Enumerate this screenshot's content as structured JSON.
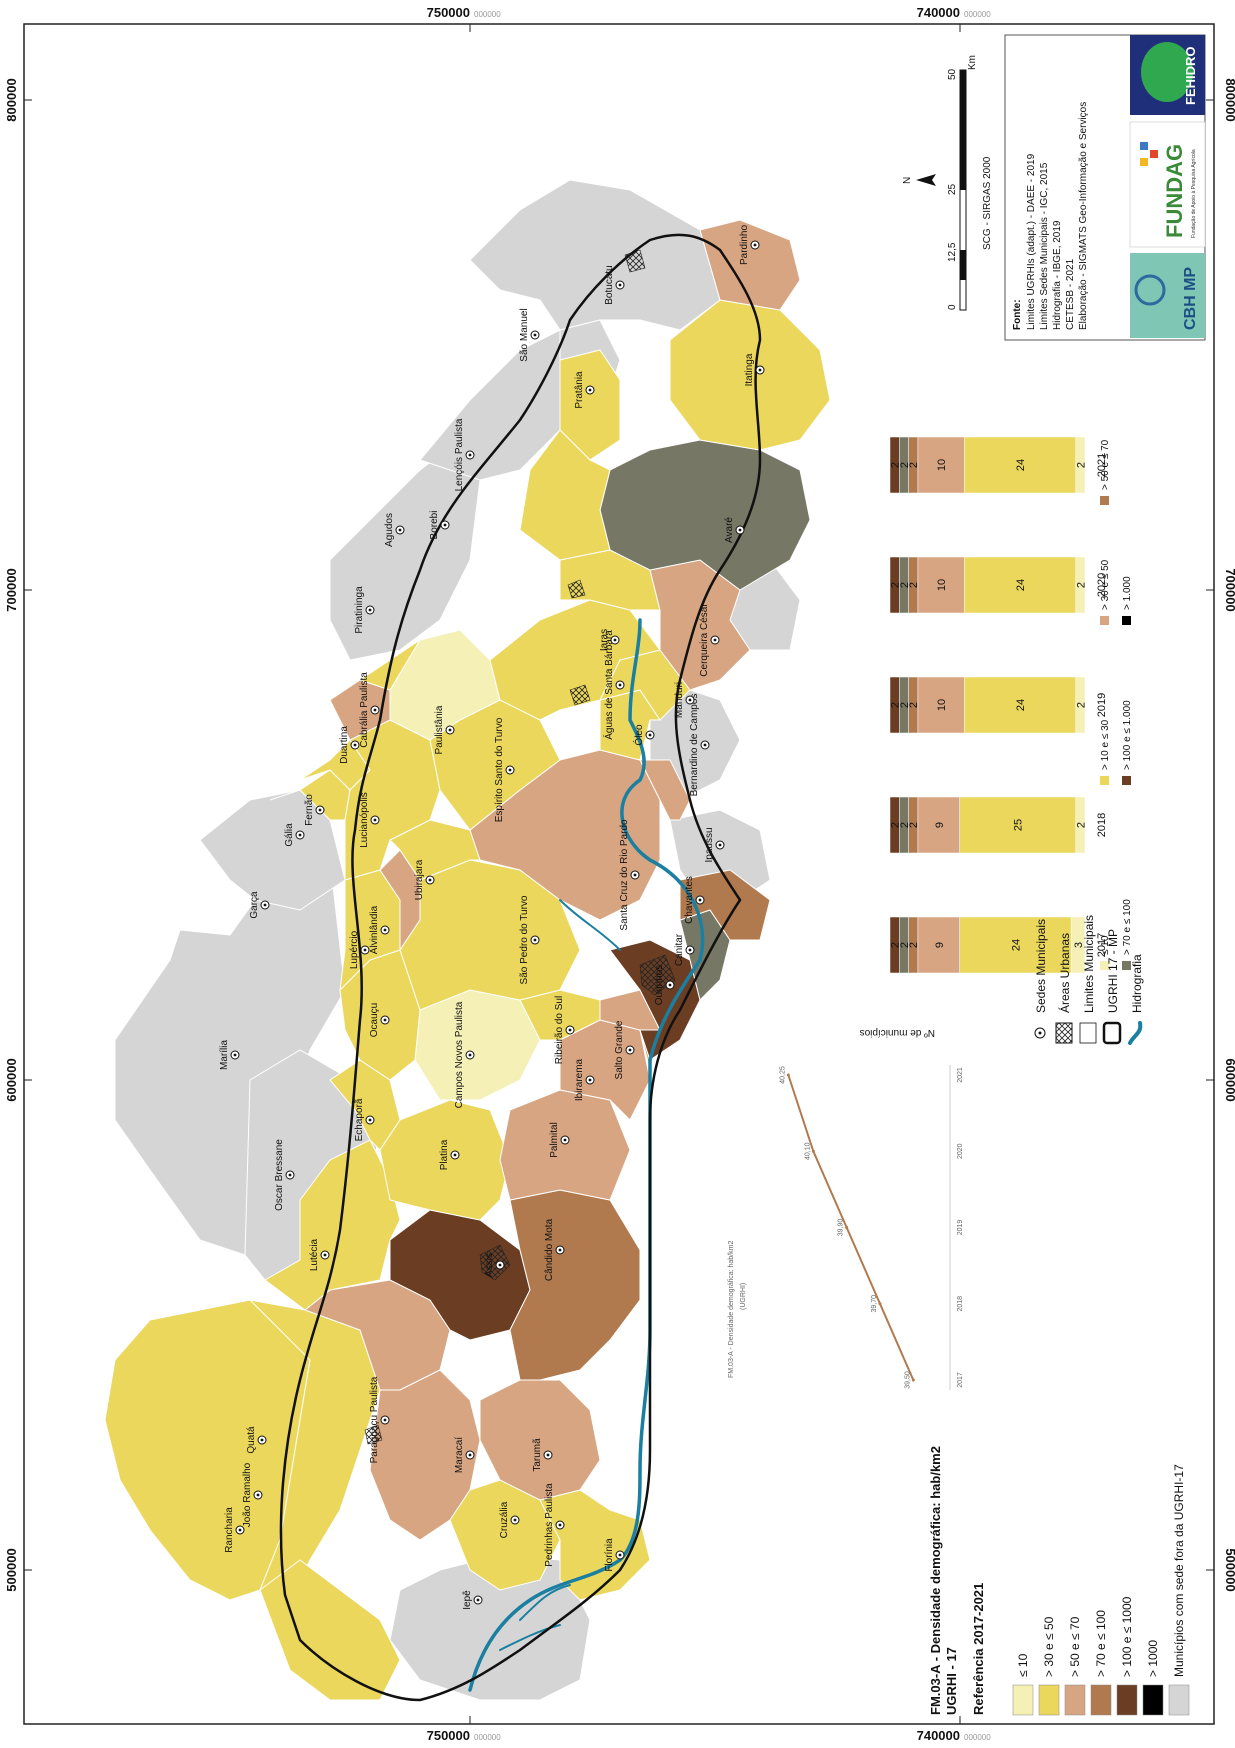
{
  "title": {
    "line1": "FM.03-A - Densidade demográfica: hab/km2",
    "line2": "UGRHI - 17",
    "line3": "Referência 2017-2021"
  },
  "coords": {
    "top": [
      "750000",
      "740000"
    ],
    "bottom": [
      "750000",
      "740000"
    ],
    "left": [
      "800000",
      "700000",
      "600000",
      "500000"
    ],
    "right": [
      "800000",
      "700000",
      "600000",
      "500000"
    ],
    "small_suffix": "000000"
  },
  "colors": {
    "le10": "#f4f0b6",
    "c30": "#ebd75c",
    "c50": "#d8a582",
    "c70": "#b07a4e",
    "c100": "#6b3e23",
    "c1000": "#777766",
    "gt1000": "#000000",
    "outside": "#d5d5d5",
    "water": "#1a7fa0"
  },
  "class_legend": [
    {
      "label": "≤ 10",
      "color": "#f4f0b6"
    },
    {
      "label": "> 30 e ≤ 50",
      "color": "#ebd75c"
    },
    {
      "label": "> 50 e ≤ 70",
      "color": "#d8a582"
    },
    {
      "label": "> 70 e ≤ 100",
      "color": "#b07a4e"
    },
    {
      "label": "> 100 e ≤ 1000",
      "color": "#6b3e23"
    },
    {
      "label": "> 1000",
      "color": "#000000"
    },
    {
      "label": "Municípios com sede fora da UGRHI-17",
      "color": "#d5d5d5"
    }
  ],
  "symbol_legend": [
    {
      "label": "Sedes Municipais",
      "icon": "dot-circle-icon"
    },
    {
      "label": "Áreas Urbanas",
      "icon": "crosshatch-icon"
    },
    {
      "label": "Limites Municipais",
      "icon": "outline-box-icon"
    },
    {
      "label": "UGRHI 17 - MP",
      "icon": "thick-outline-icon"
    },
    {
      "label": "Hidrografia",
      "icon": "river-icon"
    }
  ],
  "municipalities": [
    "Rancharia",
    "João Ramalho",
    "Quatá",
    "Iepê",
    "Paraguaçu Paulista",
    "Maracaí",
    "Cruzália",
    "Pedrinhas Paulista",
    "Florínia",
    "Tarumã",
    "Assis",
    "Cândido Mota",
    "Lutécia",
    "Oscar Bressane",
    "Echaporã",
    "Platina",
    "Palmital",
    "Ibirarema",
    "Campos Novos Paulista",
    "Salto Grande",
    "Ribeirão do Sul",
    "Marília",
    "Ocauçu",
    "Lupércio",
    "Alvinlândia",
    "São Pedro do Turvo",
    "Ourinhos",
    "Canitar",
    "Chavantes",
    "Garça",
    "Ubirajara",
    "Santa Cruz do Rio Pardo",
    "Ipaussu",
    "Gália",
    "Fernão",
    "Lucianópolis",
    "Duartina",
    "Espírito Santo do Turvo",
    "Bernardino de Campos",
    "Paulistânia",
    "Cabrália Paulista",
    "Óleo",
    "Manduri",
    "Águas de Santa Bárbara",
    "Piratininga",
    "Iaras",
    "Cerqueira César",
    "Agudos",
    "Borebi",
    "Avaré",
    "Lençóis Paulista",
    "Pratânia",
    "Itatinga",
    "São Manuel",
    "Botucatu",
    "Pardinho"
  ],
  "scale": {
    "ticks": [
      "0",
      "12,5",
      "25",
      "50"
    ],
    "unit": "Km",
    "projection": "SCG - SIRGAS 2000",
    "north": "N"
  },
  "sources": {
    "heading": "Fonte:",
    "lines": [
      "Limites UGRHIs (adapt.) - DAEE - 2019",
      "Limites Sedes Municipais - IGC, 2015",
      "Hidrografia - IBGE, 2019",
      "CETESB - 2021",
      "Elaboração - SIGMATS Geo-Informação e Serviços"
    ]
  },
  "logos": {
    "fehidro": "FEHIDRO",
    "fundag": "FUNDAG",
    "fundag_sub": "Fundação de Apoio à Pesquisa Agrícola",
    "cbh": "CBH MP"
  },
  "chart_data": [
    {
      "type": "bar",
      "stacked": true,
      "ylabel": "Nº de municípios",
      "categories": [
        "2017",
        "2018",
        "2019",
        "2020",
        "2021"
      ],
      "series": [
        {
          "name": "≤ 10",
          "color": "#f4f0b6",
          "values": [
            3,
            2,
            2,
            2,
            2
          ]
        },
        {
          "name": "> 10 e ≤ 30",
          "color": "#ebd75c",
          "values": [
            24,
            25,
            24,
            24,
            24
          ]
        },
        {
          "name": "> 30 e ≤ 50",
          "color": "#d8a582",
          "values": [
            9,
            9,
            10,
            10,
            10
          ]
        },
        {
          "name": "> 50 e ≤ 70",
          "color": "#b07a4e",
          "values": [
            2,
            2,
            2,
            2,
            2
          ]
        },
        {
          "name": "> 70 e ≤ 100",
          "color": "#777766",
          "values": [
            2,
            2,
            2,
            2,
            2
          ]
        },
        {
          "name": "> 100 e ≤ 1.000",
          "color": "#6b3e23",
          "values": [
            2,
            2,
            2,
            2,
            2
          ]
        },
        {
          "name": "> 1.000",
          "color": "#000000",
          "values": [
            0,
            0,
            0,
            0,
            0
          ]
        }
      ],
      "legend": [
        "≤ 10",
        "> 10 e ≤ 30",
        "> 30 e ≤ 50",
        "> 50 e ≤ 70",
        "> 70 e ≤ 100",
        "> 100 e ≤ 1.000",
        "> 1.000"
      ]
    },
    {
      "type": "line",
      "title": "FM.03-A - Densidade demográfica: hab/km2",
      "subtitle": "(UGRHI)",
      "categories": [
        "2017",
        "2018",
        "2019",
        "2020",
        "2021"
      ],
      "values": [
        39.5,
        39.7,
        39.9,
        40.1,
        40.25
      ],
      "labels": [
        "39,50",
        "39,70",
        "39,90",
        "40,10",
        "40,25"
      ],
      "color": "#b07a4e"
    }
  ]
}
